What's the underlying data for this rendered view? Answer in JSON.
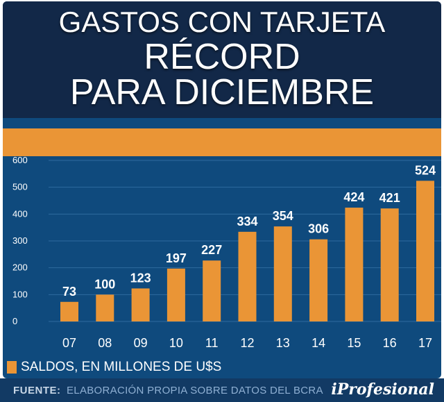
{
  "title": {
    "line1": "GASTOS CON TARJETA",
    "line2": "RÉCORD",
    "line3": "PARA DICIEMBRE"
  },
  "legend": {
    "label": "SALDOS, EN MILLONES DE U$S"
  },
  "footer": {
    "source_label": "FUENTE:",
    "source_text": "ELABORACIÓN PROPIA SOBRE DATOS DEL BCRA",
    "brand": "iProfesional"
  },
  "colors": {
    "bar": "#ea9536",
    "chart_bg": "#0f4a7d",
    "header_bg": "#122848",
    "grid": "#2f6a9e"
  },
  "chart_data": {
    "type": "bar",
    "categories": [
      "07",
      "08",
      "09",
      "10",
      "11",
      "12",
      "13",
      "14",
      "15",
      "16",
      "17"
    ],
    "values": [
      73,
      100,
      123,
      197,
      227,
      334,
      354,
      306,
      424,
      421,
      524
    ],
    "ylim": [
      0,
      600
    ],
    "yticks": [
      0,
      100,
      200,
      300,
      400,
      500,
      600
    ],
    "series_name": "SALDOS, EN MILLONES DE U$S",
    "title": "GASTOS CON TARJETA RÉCORD PARA DICIEMBRE",
    "xlabel": "",
    "ylabel": "",
    "grid": true
  }
}
